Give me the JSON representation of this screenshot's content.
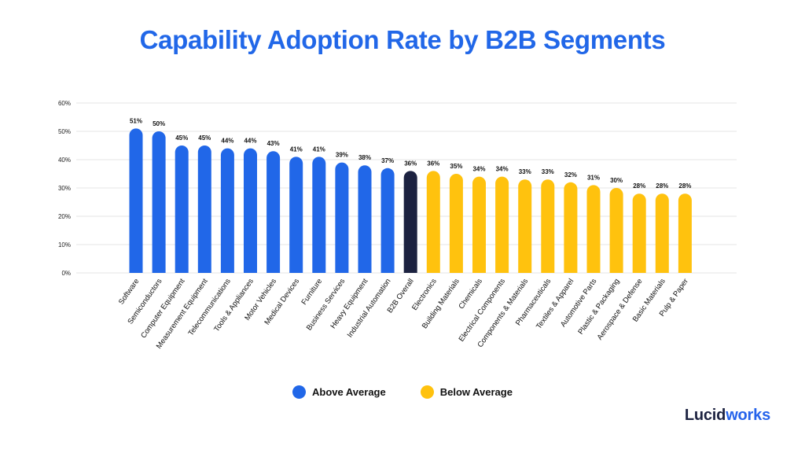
{
  "title": "Capability Adoption Rate by B2B Segments",
  "colors": {
    "title": "#2167e8",
    "above": "#2167e8",
    "overall": "#1c2240",
    "below": "#ffc20e",
    "grid": "#e4e4e4"
  },
  "legend": {
    "above_label": "Above Average",
    "below_label": "Below Average"
  },
  "logo": {
    "prefix": "Lucid",
    "suffix": "works"
  },
  "chart_data": {
    "type": "bar",
    "title": "Capability Adoption Rate by B2B Segments",
    "xlabel": "",
    "ylabel": "",
    "ylim": [
      0,
      60
    ],
    "yticks": [
      0,
      10,
      20,
      30,
      40,
      50,
      60
    ],
    "ytick_labels": [
      "0%",
      "10%",
      "20%",
      "30%",
      "40%",
      "50%",
      "60%"
    ],
    "grid": true,
    "legend_position": "bottom-center",
    "categories": [
      "Software",
      "Semiconductors",
      "Computer Equipment",
      "Measurement Equipment",
      "Telecommunications",
      "Tools & Appliances",
      "Motor Vehicles",
      "Medical Devices",
      "Furniture",
      "Business Services",
      "Heavy Equipment",
      "Industrial Automation",
      "B2B Overall",
      "Electronics",
      "Building Materials",
      "Chemicals",
      "Electrical Components",
      "Components & Materials",
      "Pharmaceuticals",
      "Textiles & Apparel",
      "Automotive Parts",
      "Plastic & Packaging",
      "Aerospace & Defense",
      "Basic Materials",
      "Pulp & Paper"
    ],
    "values": [
      51,
      50,
      45,
      45,
      44,
      44,
      43,
      41,
      41,
      39,
      38,
      37,
      36,
      36,
      35,
      34,
      34,
      33,
      33,
      32,
      31,
      30,
      28,
      28,
      28
    ],
    "value_labels": [
      "51%",
      "50%",
      "45%",
      "45%",
      "44%",
      "44%",
      "43%",
      "41%",
      "41%",
      "39%",
      "38%",
      "37%",
      "36%",
      "36%",
      "35%",
      "34%",
      "34%",
      "33%",
      "33%",
      "32%",
      "31%",
      "30%",
      "28%",
      "28%",
      "28%"
    ],
    "groups": [
      "above",
      "above",
      "above",
      "above",
      "above",
      "above",
      "above",
      "above",
      "above",
      "above",
      "above",
      "above",
      "overall",
      "below",
      "below",
      "below",
      "below",
      "below",
      "below",
      "below",
      "below",
      "below",
      "below",
      "below",
      "below"
    ]
  }
}
